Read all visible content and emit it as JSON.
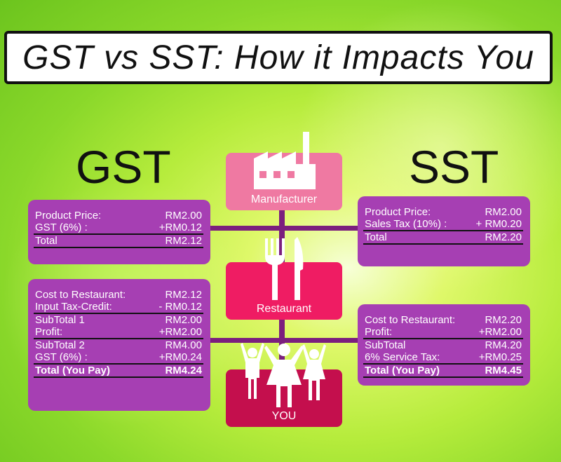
{
  "title": "GST vs SST: How it Impacts You",
  "labels": {
    "gst": "GST",
    "sst": "SST"
  },
  "nodes": {
    "manufacturer": "Manufacturer",
    "restaurant": "Restaurant",
    "you": "YOU"
  },
  "gst_top": [
    {
      "label": "Product Price:",
      "value": "RM2.00"
    },
    {
      "label": "GST (6%) :",
      "value": "+RM0.12"
    },
    {
      "label": "Total",
      "value": "RM2.12"
    }
  ],
  "sst_top": [
    {
      "label": "Product Price:",
      "value": "RM2.00"
    },
    {
      "label": "Sales Tax (10%) :",
      "value": "+ RM0.20"
    },
    {
      "label": "Total",
      "value": "RM2.20"
    }
  ],
  "gst_bottom": [
    {
      "label": "Cost to Restaurant:",
      "value": "RM2.12"
    },
    {
      "label": "Input Tax-Credit:",
      "value": "- RM0.12"
    },
    {
      "label": "SubTotal 1",
      "value": "RM2.00"
    },
    {
      "label": "Profit:",
      "value": "+RM2.00"
    },
    {
      "label": "SubTotal 2",
      "value": "RM4.00"
    },
    {
      "label": "GST (6%) :",
      "value": "+RM0.24"
    },
    {
      "label": "Total (You Pay)",
      "value": "RM4.24"
    }
  ],
  "sst_bottom": [
    {
      "label": "Cost to Restaurant:",
      "value": "RM2.20"
    },
    {
      "label": "Profit:",
      "value": "+RM2.00"
    },
    {
      "label": "SubTotal",
      "value": "RM4.20"
    },
    {
      "label": "6% Service Tax:",
      "value": "+RM0.25"
    },
    {
      "label": "Total (You Pay)",
      "value": "RM4.45"
    }
  ],
  "icons": [
    "factory-icon",
    "fork-knife-icon",
    "family-icon"
  ],
  "colors": {
    "panel": "#a63fb3",
    "manufacturer": "#ef79a2",
    "restaurant": "#ef1c63",
    "you": "#c40f4d"
  }
}
